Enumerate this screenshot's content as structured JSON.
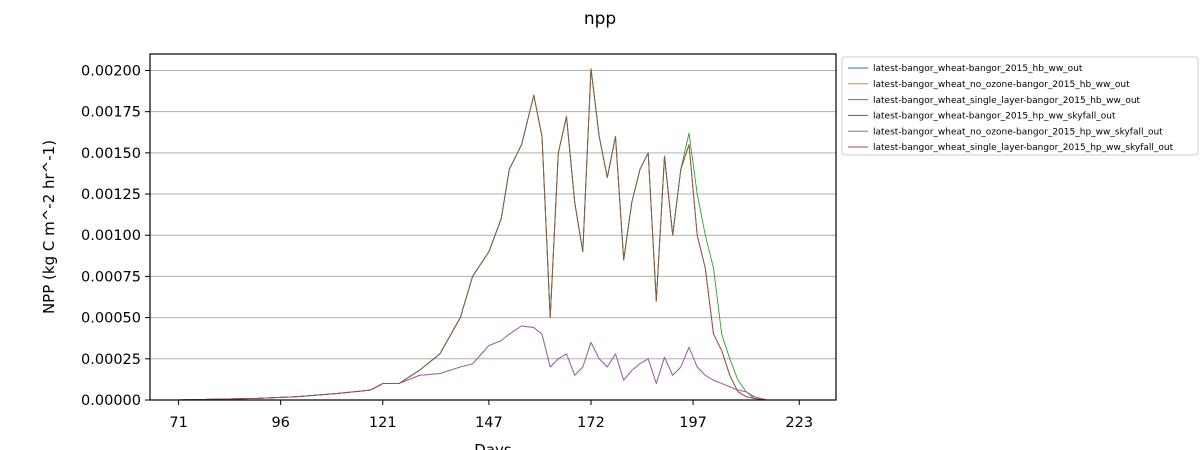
{
  "chart_data": {
    "type": "line",
    "title": "npp",
    "xlabel": "Days",
    "ylabel": "NPP (kg C m^-2 hr^-1)",
    "xlim": [
      64,
      232
    ],
    "ylim": [
      0,
      0.0021
    ],
    "xticks": [
      71,
      96,
      121,
      147,
      172,
      197,
      223
    ],
    "yticks": [
      0.0,
      0.00025,
      0.0005,
      0.00075,
      0.001,
      0.00125,
      0.0015,
      0.00175,
      0.002
    ],
    "ytick_labels": [
      "0.00000",
      "0.00025",
      "0.00050",
      "0.00075",
      "0.00100",
      "0.00125",
      "0.00150",
      "0.00175",
      "0.00200"
    ],
    "grid": "horizontal",
    "legend_position": "upper-right-outside",
    "series": [
      {
        "name": "latest-bangor_wheat-bangor_2015_hb_ww_out",
        "color": "#1f77b4",
        "x": [
          71,
          90,
          100,
          110,
          118,
          121,
          125,
          130,
          135,
          140,
          143,
          147,
          150,
          152,
          155,
          158,
          160,
          162,
          164,
          166,
          168,
          170,
          172,
          174,
          176,
          178,
          180,
          182,
          184,
          186,
          188,
          190,
          192,
          194,
          196,
          198,
          200,
          202,
          204,
          206,
          208,
          210,
          212,
          215
        ],
        "y": [
          0,
          1e-05,
          2e-05,
          4e-05,
          6e-05,
          0.0001,
          0.0001,
          0.00018,
          0.00028,
          0.0005,
          0.00075,
          0.0009,
          0.0011,
          0.0014,
          0.00155,
          0.00185,
          0.0016,
          0.0005,
          0.0015,
          0.00172,
          0.0012,
          0.0009,
          0.00201,
          0.0016,
          0.00135,
          0.0016,
          0.00085,
          0.0012,
          0.0014,
          0.0015,
          0.0006,
          0.00148,
          0.001,
          0.0014,
          0.00155,
          0.001,
          0.0008,
          0.0004,
          0.0003,
          0.00015,
          5e-05,
          2e-05,
          1e-05,
          0
        ]
      },
      {
        "name": "latest-bangor_wheat_no_ozone-bangor_2015_hb_ww_out",
        "color": "#ff7f0e",
        "x": [
          71,
          90,
          100,
          110,
          118,
          121,
          125,
          130,
          135,
          140,
          143,
          147,
          150,
          152,
          155,
          158,
          160,
          162,
          164,
          166,
          168,
          170,
          172,
          174,
          176,
          178,
          180,
          182,
          184,
          186,
          188,
          190,
          192,
          194,
          196,
          198,
          200,
          202,
          204,
          206,
          208,
          210,
          212,
          215
        ],
        "y": [
          0,
          1e-05,
          2e-05,
          4e-05,
          6e-05,
          0.0001,
          0.0001,
          0.00018,
          0.00028,
          0.0005,
          0.00075,
          0.0009,
          0.0011,
          0.0014,
          0.00155,
          0.00185,
          0.0016,
          0.0005,
          0.0015,
          0.00172,
          0.0012,
          0.0009,
          0.00201,
          0.0016,
          0.00135,
          0.0016,
          0.00085,
          0.0012,
          0.0014,
          0.0015,
          0.0006,
          0.00148,
          0.001,
          0.0014,
          0.00155,
          0.001,
          0.0008,
          0.0004,
          0.0003,
          0.00015,
          5e-05,
          2e-05,
          1e-05,
          0
        ]
      },
      {
        "name": "latest-bangor_wheat_single_layer-bangor_2015_hb_ww_out",
        "color": "#2ca02c",
        "x": [
          71,
          90,
          100,
          110,
          118,
          121,
          125,
          130,
          135,
          140,
          143,
          147,
          150,
          152,
          155,
          158,
          160,
          162,
          164,
          166,
          168,
          170,
          172,
          174,
          176,
          178,
          180,
          182,
          184,
          186,
          188,
          190,
          192,
          194,
          196,
          198,
          200,
          202,
          204,
          206,
          208,
          210,
          212,
          215
        ],
        "y": [
          0,
          1e-05,
          2e-05,
          4e-05,
          6e-05,
          0.0001,
          0.0001,
          0.00018,
          0.00028,
          0.0005,
          0.00075,
          0.0009,
          0.0011,
          0.0014,
          0.00155,
          0.00185,
          0.0016,
          0.0005,
          0.0015,
          0.00172,
          0.0012,
          0.0009,
          0.00201,
          0.0016,
          0.00135,
          0.0016,
          0.00085,
          0.0012,
          0.0014,
          0.0015,
          0.0006,
          0.00148,
          0.001,
          0.0014,
          0.00162,
          0.00125,
          0.001,
          0.0008,
          0.0004,
          0.00025,
          0.00012,
          5e-05,
          1e-05,
          0
        ]
      },
      {
        "name": "latest-bangor_wheat-bangor_2015_hp_ww_skyfall_out",
        "color": "#d62728",
        "x": [
          71,
          90,
          100,
          110,
          118,
          121,
          125,
          130,
          135,
          140,
          143,
          147,
          150,
          152,
          155,
          158,
          160,
          162,
          164,
          166,
          168,
          170,
          172,
          174,
          176,
          178,
          180,
          182,
          184,
          186,
          188,
          190,
          192,
          194,
          196,
          198,
          200,
          202,
          204,
          206,
          208,
          210,
          212,
          215
        ],
        "y": [
          0,
          1e-05,
          2e-05,
          4e-05,
          6e-05,
          0.0001,
          0.0001,
          0.00015,
          0.00016,
          0.0002,
          0.00022,
          0.00033,
          0.00036,
          0.0004,
          0.00045,
          0.00044,
          0.0004,
          0.0002,
          0.00025,
          0.00028,
          0.00015,
          0.0002,
          0.00035,
          0.00025,
          0.0002,
          0.00028,
          0.00012,
          0.00018,
          0.00022,
          0.00025,
          0.0001,
          0.00026,
          0.00015,
          0.0002,
          0.00032,
          0.0002,
          0.00015,
          0.00012,
          0.0001,
          8e-05,
          6e-05,
          5e-05,
          2e-05,
          0
        ]
      },
      {
        "name": "latest-bangor_wheat_no_ozone-bangor_2015_hp_ww_skyfall_out",
        "color": "#9467bd",
        "x": [
          71,
          90,
          100,
          110,
          118,
          121,
          125,
          130,
          135,
          140,
          143,
          147,
          150,
          152,
          155,
          158,
          160,
          162,
          164,
          166,
          168,
          170,
          172,
          174,
          176,
          178,
          180,
          182,
          184,
          186,
          188,
          190,
          192,
          194,
          196,
          198,
          200,
          202,
          204,
          206,
          208,
          210,
          212,
          215
        ],
        "y": [
          0,
          1e-05,
          2e-05,
          4e-05,
          6e-05,
          0.0001,
          0.0001,
          0.00015,
          0.00016,
          0.0002,
          0.00022,
          0.00033,
          0.00036,
          0.0004,
          0.00045,
          0.00044,
          0.0004,
          0.0002,
          0.00025,
          0.00028,
          0.00015,
          0.0002,
          0.00035,
          0.00025,
          0.0002,
          0.00028,
          0.00012,
          0.00018,
          0.00022,
          0.00025,
          0.0001,
          0.00026,
          0.00015,
          0.0002,
          0.00032,
          0.0002,
          0.00015,
          0.00012,
          0.0001,
          8e-05,
          6e-05,
          5e-05,
          2e-05,
          0
        ]
      },
      {
        "name": "latest-bangor_wheat_single_layer-bangor_2015_hp_ww_skyfall_out",
        "color": "#8c564b",
        "x": [
          71,
          90,
          100,
          110,
          118,
          121,
          125,
          130,
          135,
          140,
          143,
          147,
          150,
          152,
          155,
          158,
          160,
          162,
          164,
          166,
          168,
          170,
          172,
          174,
          176,
          178,
          180,
          182,
          184,
          186,
          188,
          190,
          192,
          194,
          196,
          198,
          200,
          202,
          204,
          206,
          208,
          210,
          212,
          215
        ],
        "y": [
          0,
          1e-05,
          2e-05,
          4e-05,
          6e-05,
          0.0001,
          0.0001,
          0.00018,
          0.00028,
          0.0005,
          0.00075,
          0.0009,
          0.0011,
          0.0014,
          0.00155,
          0.00185,
          0.0016,
          0.0005,
          0.0015,
          0.00172,
          0.0012,
          0.0009,
          0.00201,
          0.0016,
          0.00135,
          0.0016,
          0.00085,
          0.0012,
          0.0014,
          0.0015,
          0.0006,
          0.00148,
          0.001,
          0.0014,
          0.00155,
          0.001,
          0.0008,
          0.0004,
          0.0003,
          0.00015,
          5e-05,
          2e-05,
          1e-05,
          0
        ]
      }
    ]
  }
}
